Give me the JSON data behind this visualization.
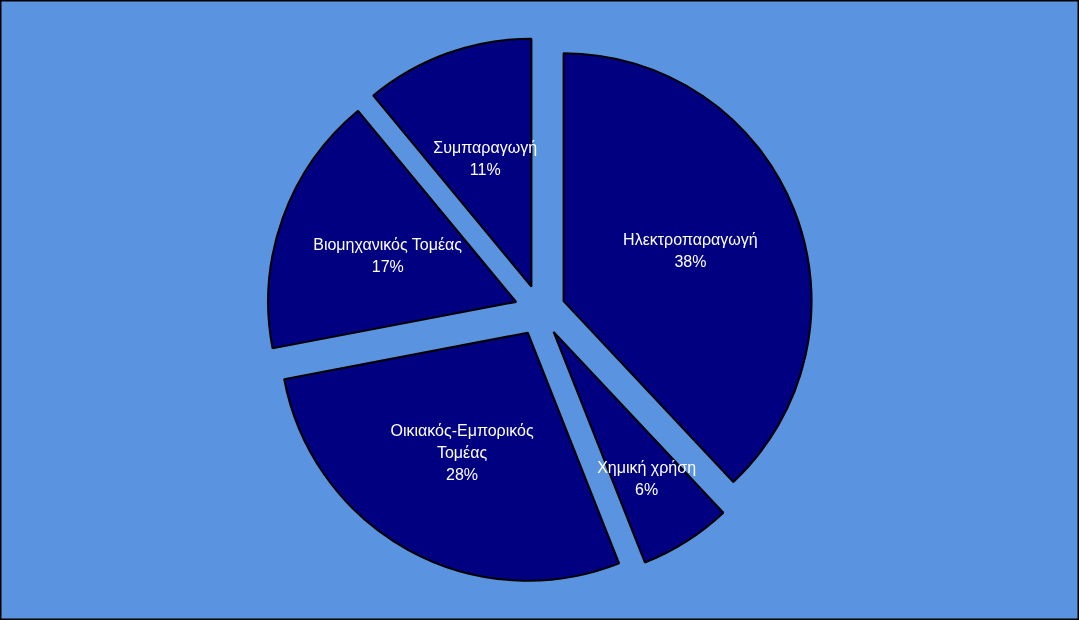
{
  "chart_data": {
    "type": "pie",
    "categories": [
      "Ηλεκτροπαραγωγή",
      "Χημική χρήση",
      "Οικιακός-Εμπορικός Τομέας",
      "Βιομηχανικός Τομέας",
      "Συμπαραγωγή"
    ],
    "values": [
      38,
      6,
      28,
      17,
      11
    ],
    "value_labels": [
      "38%",
      "6%",
      "28%",
      "17%",
      "11%"
    ],
    "colors": [
      "#000080",
      "#000080",
      "#000080",
      "#000080",
      "#000080"
    ]
  }
}
